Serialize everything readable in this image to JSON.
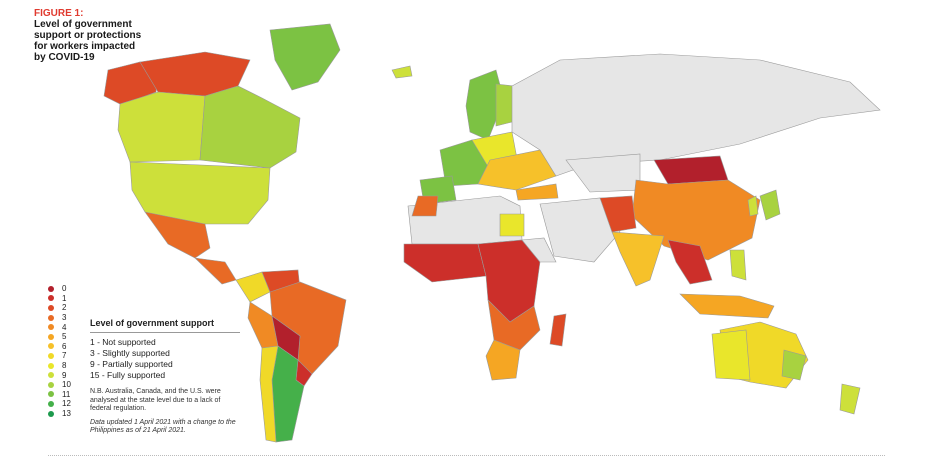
{
  "figure": {
    "label": "FIGURE 1:",
    "title_lines": [
      "Level of government",
      "support or protections",
      "for workers impacted",
      "by COVID-19"
    ]
  },
  "scale": [
    {
      "value": "0",
      "color": "#b2202c"
    },
    {
      "value": "1",
      "color": "#cc2f2a"
    },
    {
      "value": "2",
      "color": "#dd4a26"
    },
    {
      "value": "3",
      "color": "#e86a25"
    },
    {
      "value": "4",
      "color": "#f08a24"
    },
    {
      "value": "5",
      "color": "#f5a623"
    },
    {
      "value": "6",
      "color": "#f6c12a"
    },
    {
      "value": "7",
      "color": "#f0d928"
    },
    {
      "value": "8",
      "color": "#e9e62b"
    },
    {
      "value": "9",
      "color": "#cde03a"
    },
    {
      "value": "10",
      "color": "#a8d240"
    },
    {
      "value": "11",
      "color": "#7cc243"
    },
    {
      "value": "12",
      "color": "#45b04a"
    },
    {
      "value": "13",
      "color": "#1d9a4d"
    }
  ],
  "legend": {
    "heading": "Level of government support",
    "items": [
      "1 - Not supported",
      "3 - Slightly supported",
      "9 - Partially supported",
      "15 - Fully supported"
    ],
    "note": "N.B. Australia, Canada, and the U.S. were analysed at the state level due to a lack of federal regulation.",
    "update": "Data updated 1 April 2021 with a change to the Philippines as of 21 April 2021."
  },
  "regions": [
    {
      "name": "Alaska",
      "score": 2
    },
    {
      "name": "Northern Canada",
      "score": 2
    },
    {
      "name": "Western Canada",
      "score": 9
    },
    {
      "name": "Eastern Canada",
      "score": 10
    },
    {
      "name": "Greenland",
      "score": 11
    },
    {
      "name": "United States",
      "score": 9
    },
    {
      "name": "Mexico",
      "score": 3
    },
    {
      "name": "Central America",
      "score": 3
    },
    {
      "name": "Colombia",
      "score": 7
    },
    {
      "name": "Venezuela",
      "score": 2
    },
    {
      "name": "Brazil",
      "score": 3
    },
    {
      "name": "Peru",
      "score": 4
    },
    {
      "name": "Bolivia",
      "score": 0
    },
    {
      "name": "Paraguay",
      "score": 1
    },
    {
      "name": "Argentina",
      "score": 12
    },
    {
      "name": "Chile",
      "score": 7
    },
    {
      "name": "Iceland",
      "score": 9
    },
    {
      "name": "Scandinavia",
      "score": 11
    },
    {
      "name": "Finland",
      "score": 10
    },
    {
      "name": "Western Europe",
      "score": 11
    },
    {
      "name": "Spain",
      "score": 11
    },
    {
      "name": "Central Europe",
      "score": 8
    },
    {
      "name": "Eastern Europe",
      "score": 6
    },
    {
      "name": "Turkey",
      "score": 5
    },
    {
      "name": "Russia",
      "score": null
    },
    {
      "name": "Kazakhstan",
      "score": null
    },
    {
      "name": "Mongolia",
      "score": 0
    },
    {
      "name": "China",
      "score": 4
    },
    {
      "name": "Japan",
      "score": 10
    },
    {
      "name": "Korea",
      "score": 9
    },
    {
      "name": "Middle East",
      "score": null
    },
    {
      "name": "Pakistan",
      "score": 2
    },
    {
      "name": "India",
      "score": 6
    },
    {
      "name": "Southeast Asia",
      "score": 1
    },
    {
      "name": "Philippines",
      "score": 9
    },
    {
      "name": "Indonesia",
      "score": 5
    },
    {
      "name": "North Africa",
      "score": null
    },
    {
      "name": "Morocco",
      "score": 3
    },
    {
      "name": "Egypt",
      "score": 8
    },
    {
      "name": "West Africa",
      "score": 1
    },
    {
      "name": "Central Africa",
      "score": 1
    },
    {
      "name": "East Africa",
      "score": null
    },
    {
      "name": "Southern Africa",
      "score": 3
    },
    {
      "name": "South Africa",
      "score": 5
    },
    {
      "name": "Madagascar",
      "score": 2
    },
    {
      "name": "Australia",
      "score": 7
    },
    {
      "name": "Western Australia",
      "score": 8
    },
    {
      "name": "New South Wales",
      "score": 10
    },
    {
      "name": "New Zealand",
      "score": 9
    }
  ]
}
